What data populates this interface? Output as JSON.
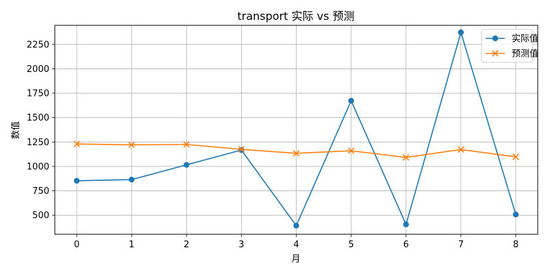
{
  "chart_data": {
    "type": "line",
    "title": "transport 实际 vs 预测",
    "xlabel": "月",
    "ylabel": "数值",
    "x": [
      0,
      1,
      2,
      3,
      4,
      5,
      6,
      7,
      8
    ],
    "xlim": [
      -0.4,
      8.4
    ],
    "ylim": [
      305,
      2445
    ],
    "yticks": [
      500,
      750,
      1000,
      1250,
      1500,
      1750,
      2000,
      2250
    ],
    "grid": true,
    "legend_position": "top-right",
    "series": [
      {
        "name": "实际值",
        "color": "#1f77b4",
        "marker": "circle",
        "values": [
          853,
          865,
          1016,
          1168,
          393,
          1673,
          406,
          2373,
          507
        ]
      },
      {
        "name": "预测值",
        "color": "#ff7f0e",
        "marker": "x",
        "values": [
          1230,
          1221,
          1225,
          1175,
          1134,
          1160,
          1092,
          1173,
          1098
        ]
      }
    ]
  }
}
